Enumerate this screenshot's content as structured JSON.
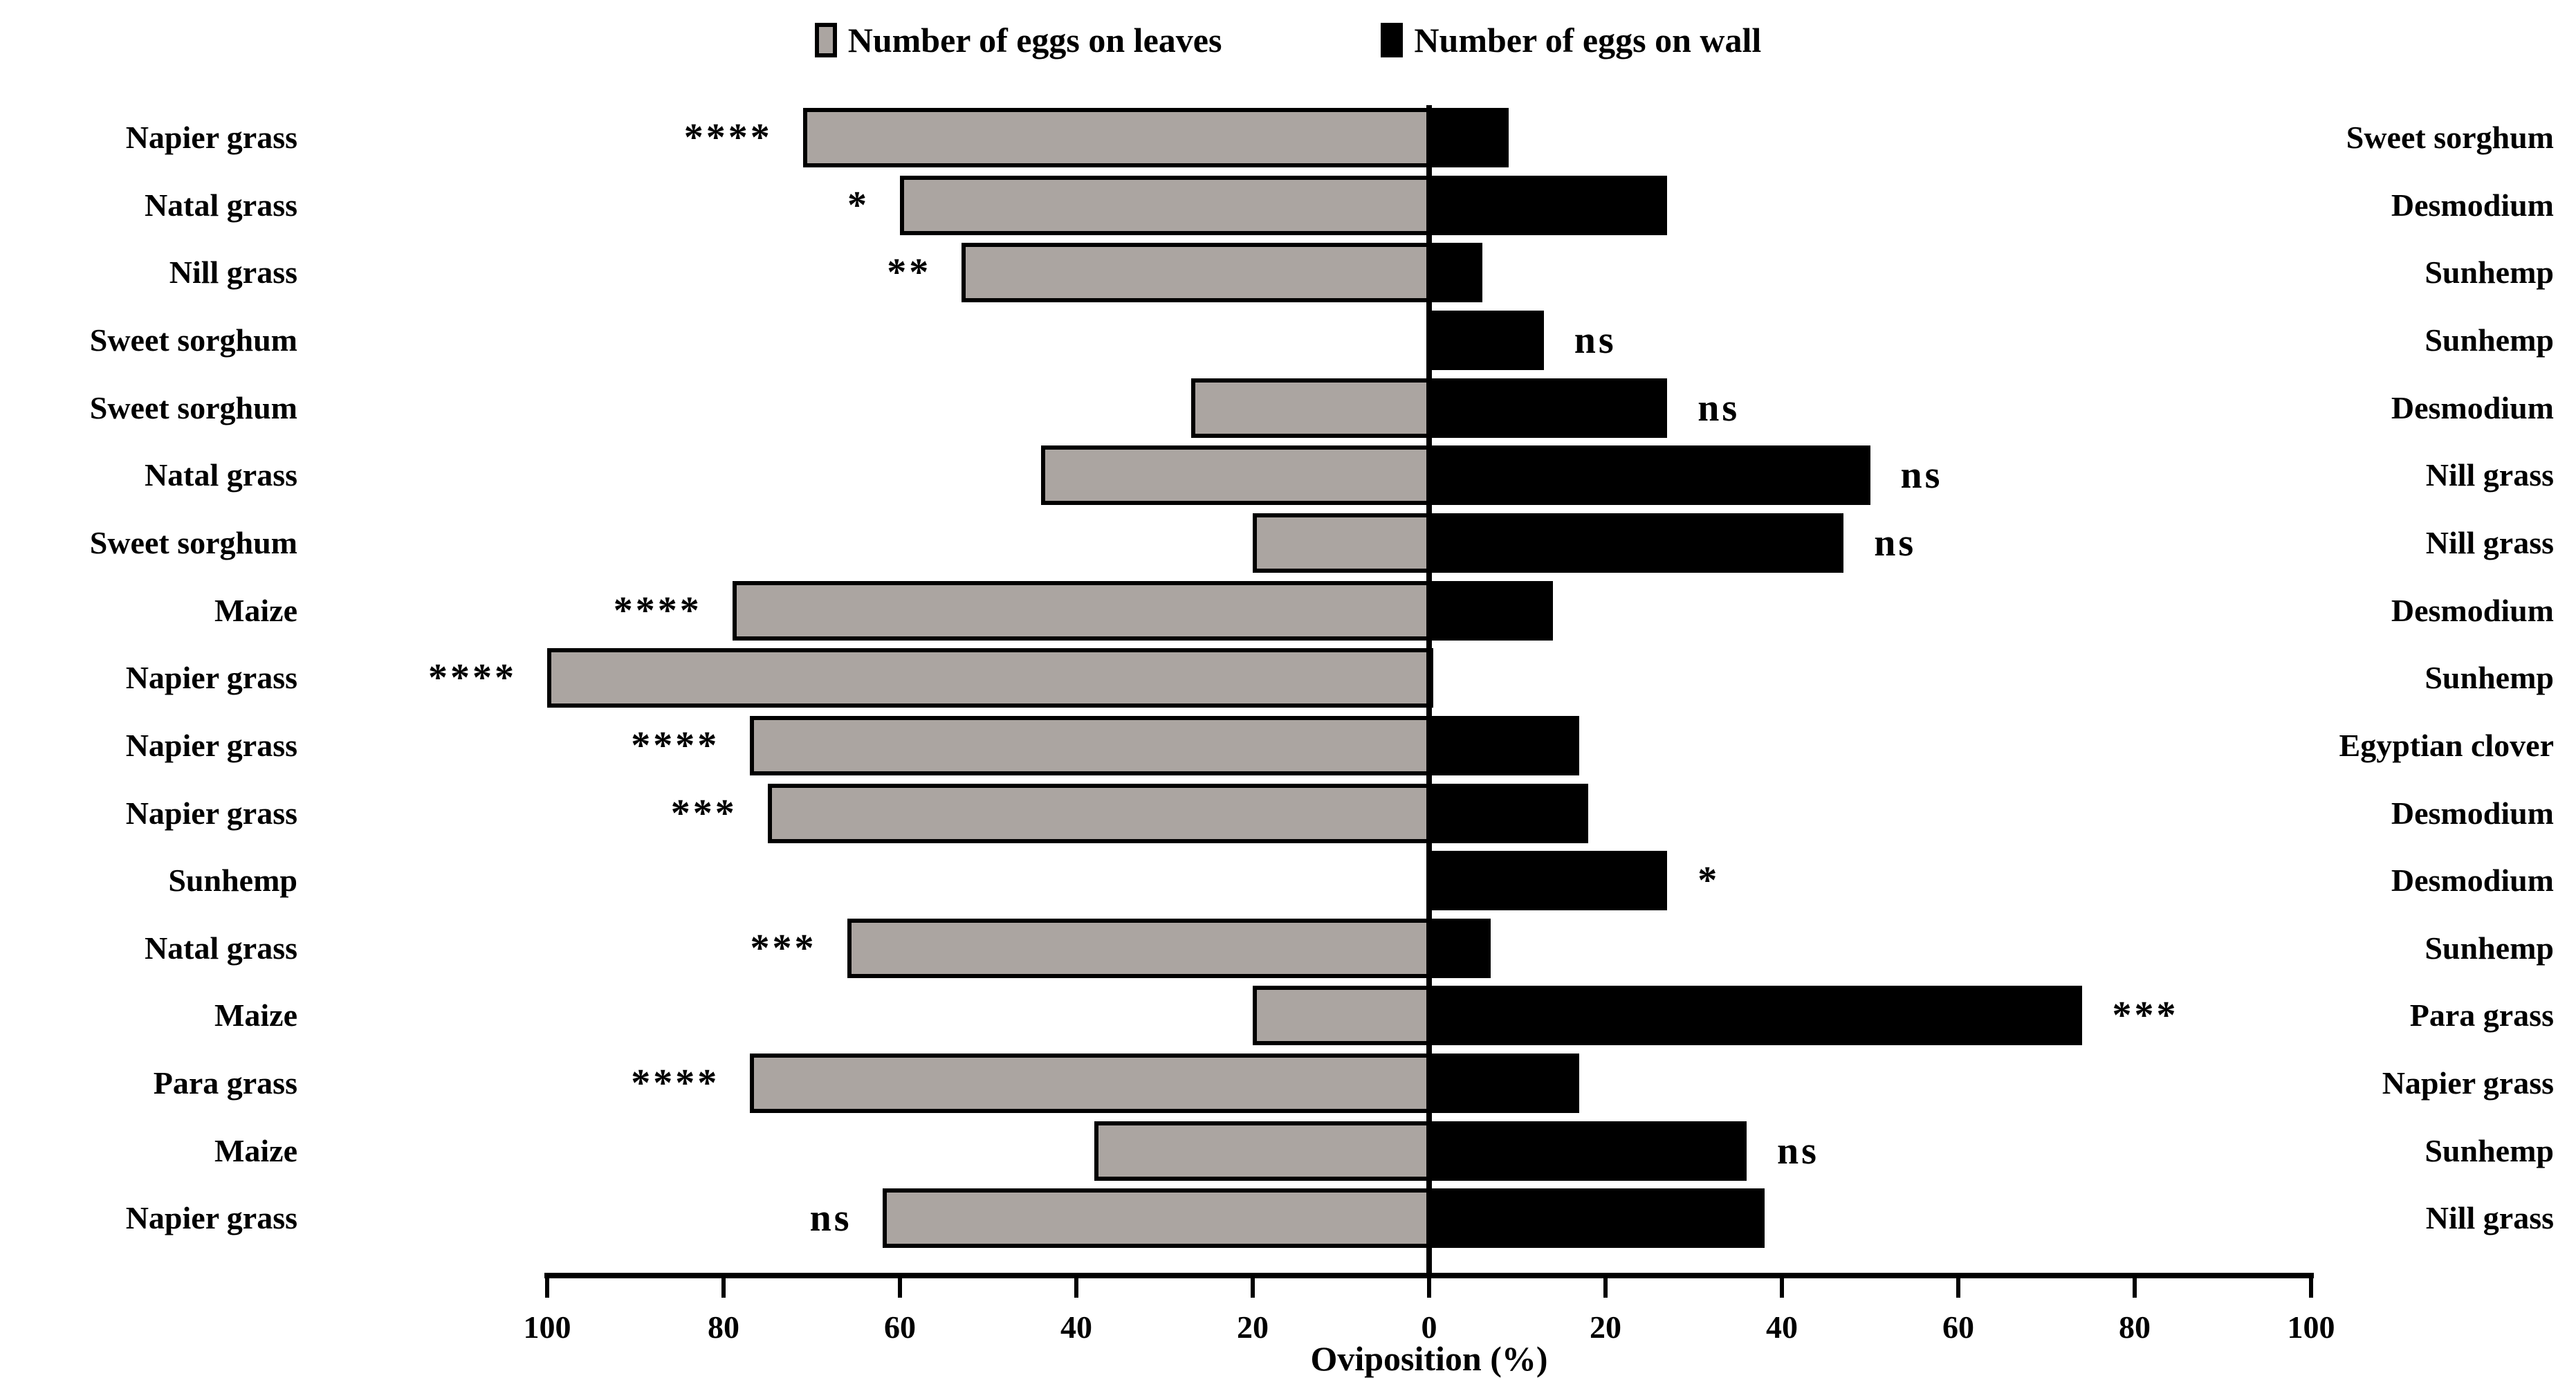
{
  "legend": {
    "items": [
      {
        "id": "leaves",
        "label": "Number of eggs on leaves",
        "color": "#ABA5A1"
      },
      {
        "id": "wall",
        "label": "Number of eggs on wall",
        "color": "#000000"
      }
    ]
  },
  "axis": {
    "label": "Oviposition (%)",
    "ticks": [
      {
        "value": -100,
        "label": "100"
      },
      {
        "value": -80,
        "label": "80"
      },
      {
        "value": -60,
        "label": "60"
      },
      {
        "value": -40,
        "label": "40"
      },
      {
        "value": -20,
        "label": "20"
      },
      {
        "value": 0,
        "label": "0"
      },
      {
        "value": 20,
        "label": "20"
      },
      {
        "value": 40,
        "label": "40"
      },
      {
        "value": 60,
        "label": "60"
      },
      {
        "value": 80,
        "label": "80"
      },
      {
        "value": 100,
        "label": "100"
      }
    ]
  },
  "chart_data": {
    "type": "bar",
    "orientation": "horizontal",
    "diverging": true,
    "title": "",
    "xlabel": "Oviposition (%)",
    "xlim": [
      -100,
      100
    ],
    "grid": false,
    "legend_position": "top-center",
    "series": [
      {
        "name": "Number of eggs on leaves",
        "side": "left",
        "color": "#ABA5A1"
      },
      {
        "name": "Number of eggs on wall",
        "side": "right",
        "color": "#000000"
      }
    ],
    "rows": [
      {
        "left_label": "Napier grass",
        "right_label": "Sweet sorghum",
        "leaves_pct": 71,
        "wall_pct": 9,
        "significance": "****",
        "significance_side": "left"
      },
      {
        "left_label": "Natal grass",
        "right_label": "Desmodium",
        "leaves_pct": 60,
        "wall_pct": 27,
        "significance": "*",
        "significance_side": "left"
      },
      {
        "left_label": "Nill grass",
        "right_label": "Sunhemp",
        "leaves_pct": 53,
        "wall_pct": 6,
        "significance": "**",
        "significance_side": "left"
      },
      {
        "left_label": "Sweet sorghum",
        "right_label": "Sunhemp",
        "leaves_pct": 0,
        "wall_pct": 13,
        "significance": "ns",
        "significance_side": "right"
      },
      {
        "left_label": "Sweet sorghum",
        "right_label": "Desmodium",
        "leaves_pct": 27,
        "wall_pct": 27,
        "significance": "ns",
        "significance_side": "right"
      },
      {
        "left_label": "Natal grass",
        "right_label": "Nill grass",
        "leaves_pct": 44,
        "wall_pct": 50,
        "significance": "ns",
        "significance_side": "right"
      },
      {
        "left_label": "Sweet sorghum",
        "right_label": "Nill grass",
        "leaves_pct": 20,
        "wall_pct": 47,
        "significance": "ns",
        "significance_side": "right"
      },
      {
        "left_label": "Maize",
        "right_label": "Desmodium",
        "leaves_pct": 79,
        "wall_pct": 14,
        "significance": "****",
        "significance_side": "left"
      },
      {
        "left_label": "Napier grass",
        "right_label": "Sunhemp",
        "leaves_pct": 100,
        "wall_pct": 0,
        "significance": "****",
        "significance_side": "left"
      },
      {
        "left_label": "Napier grass",
        "right_label": "Egyptian clover",
        "leaves_pct": 77,
        "wall_pct": 17,
        "significance": "****",
        "significance_side": "left"
      },
      {
        "left_label": "Napier grass",
        "right_label": "Desmodium",
        "leaves_pct": 75,
        "wall_pct": 18,
        "significance": "***",
        "significance_side": "left"
      },
      {
        "left_label": "Sunhemp",
        "right_label": "Desmodium",
        "leaves_pct": 0,
        "wall_pct": 27,
        "significance": "*",
        "significance_side": "right"
      },
      {
        "left_label": "Natal grass",
        "right_label": "Sunhemp",
        "leaves_pct": 66,
        "wall_pct": 7,
        "significance": "***",
        "significance_side": "left"
      },
      {
        "left_label": "Maize",
        "right_label": "Para grass",
        "leaves_pct": 20,
        "wall_pct": 74,
        "significance": "***",
        "significance_side": "right"
      },
      {
        "left_label": "Para grass",
        "right_label": "Napier grass",
        "leaves_pct": 77,
        "wall_pct": 17,
        "significance": "****",
        "significance_side": "left"
      },
      {
        "left_label": "Maize",
        "right_label": "Sunhemp",
        "leaves_pct": 38,
        "wall_pct": 36,
        "significance": "ns",
        "significance_side": "right"
      },
      {
        "left_label": "Napier grass",
        "right_label": "Nill grass",
        "leaves_pct": 62,
        "wall_pct": 38,
        "significance": "ns",
        "significance_side": "left"
      }
    ]
  }
}
